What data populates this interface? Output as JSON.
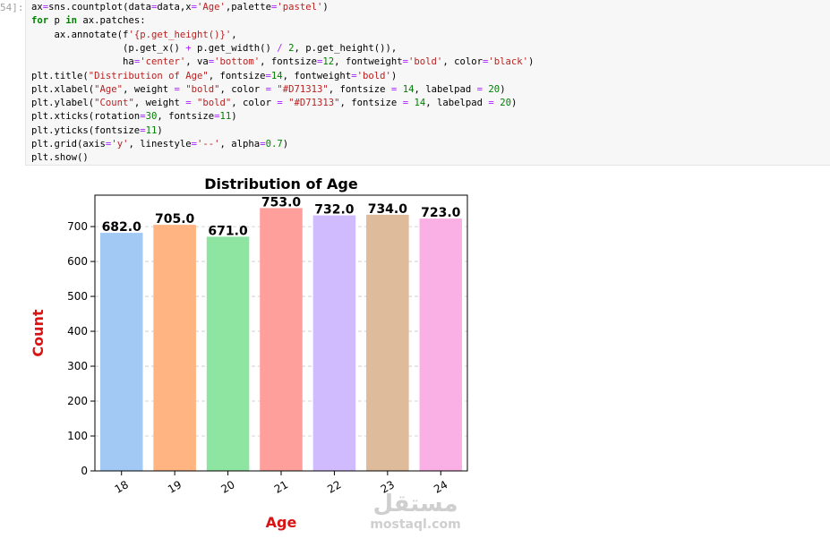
{
  "cell": {
    "prompt": "54]:",
    "code": [
      "ax=sns.countplot(data=data,x='Age',palette='pastel')",
      "for p in ax.patches:",
      "    ax.annotate(f'{p.get_height()}',",
      "                (p.get_x() + p.get_width() / 2, p.get_height()),",
      "                ha='center', va='bottom', fontsize=12, fontweight='bold', color='black')",
      "plt.title(\"Distribution of Age\", fontsize=14, fontweight='bold')",
      "plt.xlabel(\"Age\", weight = \"bold\", color = \"#D71313\", fontsize = 14, labelpad = 20)",
      "plt.ylabel(\"Count\", weight = \"bold\", color = \"#D71313\", fontsize = 14, labelpad = 20)",
      "plt.xticks(rotation=30, fontsize=11)",
      "plt.yticks(fontsize=11)",
      "plt.grid(axis='y', linestyle='--', alpha=0.7)",
      "plt.show()"
    ]
  },
  "chart_data": {
    "type": "bar",
    "title": "Distribution of Age",
    "xlabel": "Age",
    "ylabel": "Count",
    "categories": [
      "18",
      "19",
      "20",
      "21",
      "22",
      "23",
      "24"
    ],
    "values": [
      682,
      705,
      671,
      753,
      732,
      734,
      723
    ],
    "value_labels": [
      "682.0",
      "705.0",
      "671.0",
      "753.0",
      "732.0",
      "734.0",
      "723.0"
    ],
    "ylim": [
      0,
      790
    ],
    "yticks": [
      0,
      100,
      200,
      300,
      400,
      500,
      600,
      700
    ],
    "grid": "y-dashed",
    "colors": [
      "#a1c9f4",
      "#ffb482",
      "#8de5a1",
      "#ff9f9b",
      "#d0bbff",
      "#debb9b",
      "#fab0e4"
    ],
    "label_color": "#D71313"
  },
  "watermark": {
    "arabic": "مستقل",
    "latin": "mostaql.com"
  }
}
